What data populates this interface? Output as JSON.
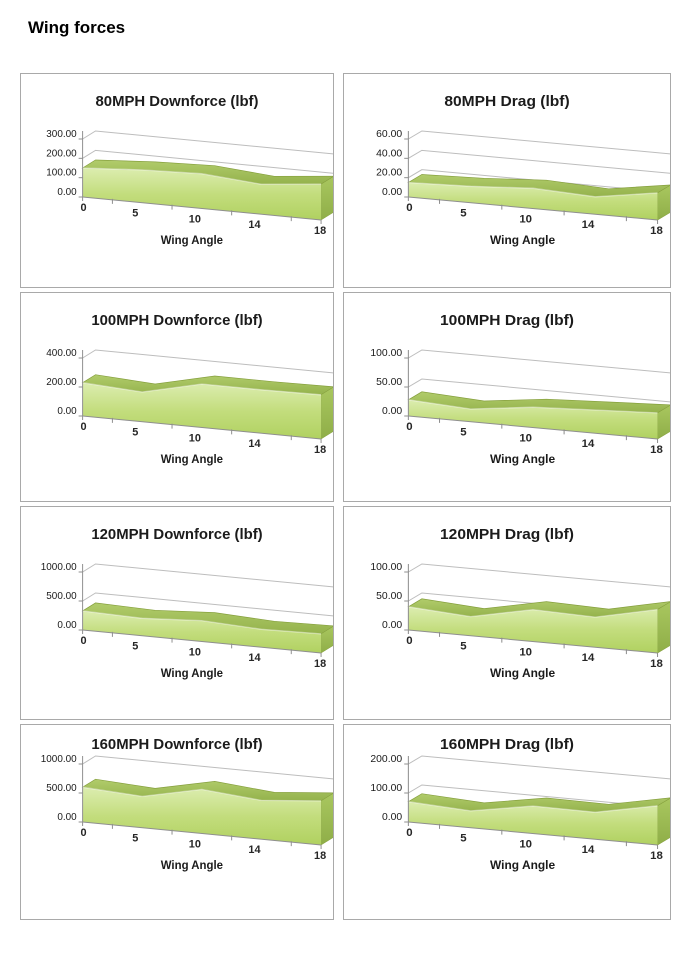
{
  "page": {
    "title": "Wing forces"
  },
  "style": {
    "accent_green": "#b0d160",
    "area_gradient": [
      "#dcedb0",
      "#c3dd7d",
      "#b0d160"
    ],
    "ribbon_gradient": [
      "#b1cc6b",
      "#94b24c"
    ],
    "side_gradient": [
      "#a9c75f",
      "#8fae48"
    ],
    "outline_green": "#86a03e",
    "grid_line": "#bdbdbd",
    "axis_line": "#8f8f8f",
    "title_color": "#1b1b1b",
    "tick_text_color": "#1a1a1a",
    "x_text_color": "#262626",
    "cell_border": "#a9a9a9"
  },
  "chart_data": [
    {
      "type": "area",
      "title": "80MPH Downforce (lbf)",
      "xlabel": "Wing Angle",
      "categories": [
        "0",
        "5",
        "10",
        "14",
        "18"
      ],
      "values": [
        150,
        170,
        180,
        155,
        185
      ],
      "ylim": [
        0,
        300
      ],
      "y_tick_labels": [
        "0.00",
        "100.00",
        "200.00",
        "300.00"
      ],
      "grid": true,
      "legend": "none"
    },
    {
      "type": "area",
      "title": "80MPH Drag (lbf)",
      "xlabel": "Wing Angle",
      "categories": [
        "0",
        "5",
        "10",
        "14",
        "18"
      ],
      "values": [
        15,
        17,
        21,
        18,
        28
      ],
      "ylim": [
        0,
        60
      ],
      "y_tick_labels": [
        "0.00",
        "20.00",
        "40.00",
        "60.00"
      ],
      "grid": true,
      "legend": "none"
    },
    {
      "type": "area",
      "title": "100MPH Downforce (lbf)",
      "xlabel": "Wing Angle",
      "categories": [
        "0",
        "5",
        "10",
        "14",
        "18"
      ],
      "values": [
        230,
        205,
        300,
        300,
        305
      ],
      "ylim": [
        0,
        400
      ],
      "y_tick_labels": [
        "0.00",
        "200.00",
        "400.00"
      ],
      "grid": true,
      "legend": "none"
    },
    {
      "type": "area",
      "title": "100MPH Drag (lbf)",
      "xlabel": "Wing Angle",
      "categories": [
        "0",
        "5",
        "10",
        "14",
        "18"
      ],
      "values": [
        28,
        22,
        35,
        40,
        45
      ],
      "ylim": [
        0,
        100
      ],
      "y_tick_labels": [
        "0.00",
        "50.00",
        "100.00"
      ],
      "grid": true,
      "legend": "none"
    },
    {
      "type": "area",
      "title": "120MPH Downforce (lbf)",
      "xlabel": "Wing Angle",
      "categories": [
        "0",
        "5",
        "10",
        "14",
        "18"
      ],
      "values": [
        330,
        300,
        360,
        310,
        330
      ],
      "ylim": [
        0,
        1000
      ],
      "y_tick_labels": [
        "0.00",
        "500.00",
        "1000.00"
      ],
      "grid": true,
      "legend": "none"
    },
    {
      "type": "area",
      "title": "120MPH Drag (lbf)",
      "xlabel": "Wing Angle",
      "categories": [
        "0",
        "5",
        "10",
        "14",
        "18"
      ],
      "values": [
        40,
        33,
        55,
        52,
        75
      ],
      "ylim": [
        0,
        100
      ],
      "y_tick_labels": [
        "0.00",
        "50.00",
        "100.00"
      ],
      "grid": true,
      "legend": "none"
    },
    {
      "type": "area",
      "title": "160MPH Downforce (lbf)",
      "xlabel": "Wing Angle",
      "categories": [
        "0",
        "5",
        "10",
        "14",
        "18"
      ],
      "values": [
        600,
        540,
        760,
        670,
        760
      ],
      "ylim": [
        0,
        1000
      ],
      "y_tick_labels": [
        "0.00",
        "500.00",
        "1000.00"
      ],
      "grid": true,
      "legend": "none"
    },
    {
      "type": "area",
      "title": "160MPH Drag (lbf)",
      "xlabel": "Wing Angle",
      "categories": [
        "0",
        "5",
        "10",
        "14",
        "18"
      ],
      "values": [
        70,
        58,
        95,
        93,
        135
      ],
      "ylim": [
        0,
        200
      ],
      "y_tick_labels": [
        "0.00",
        "100.00",
        "200.00"
      ],
      "grid": true,
      "legend": "none"
    }
  ]
}
